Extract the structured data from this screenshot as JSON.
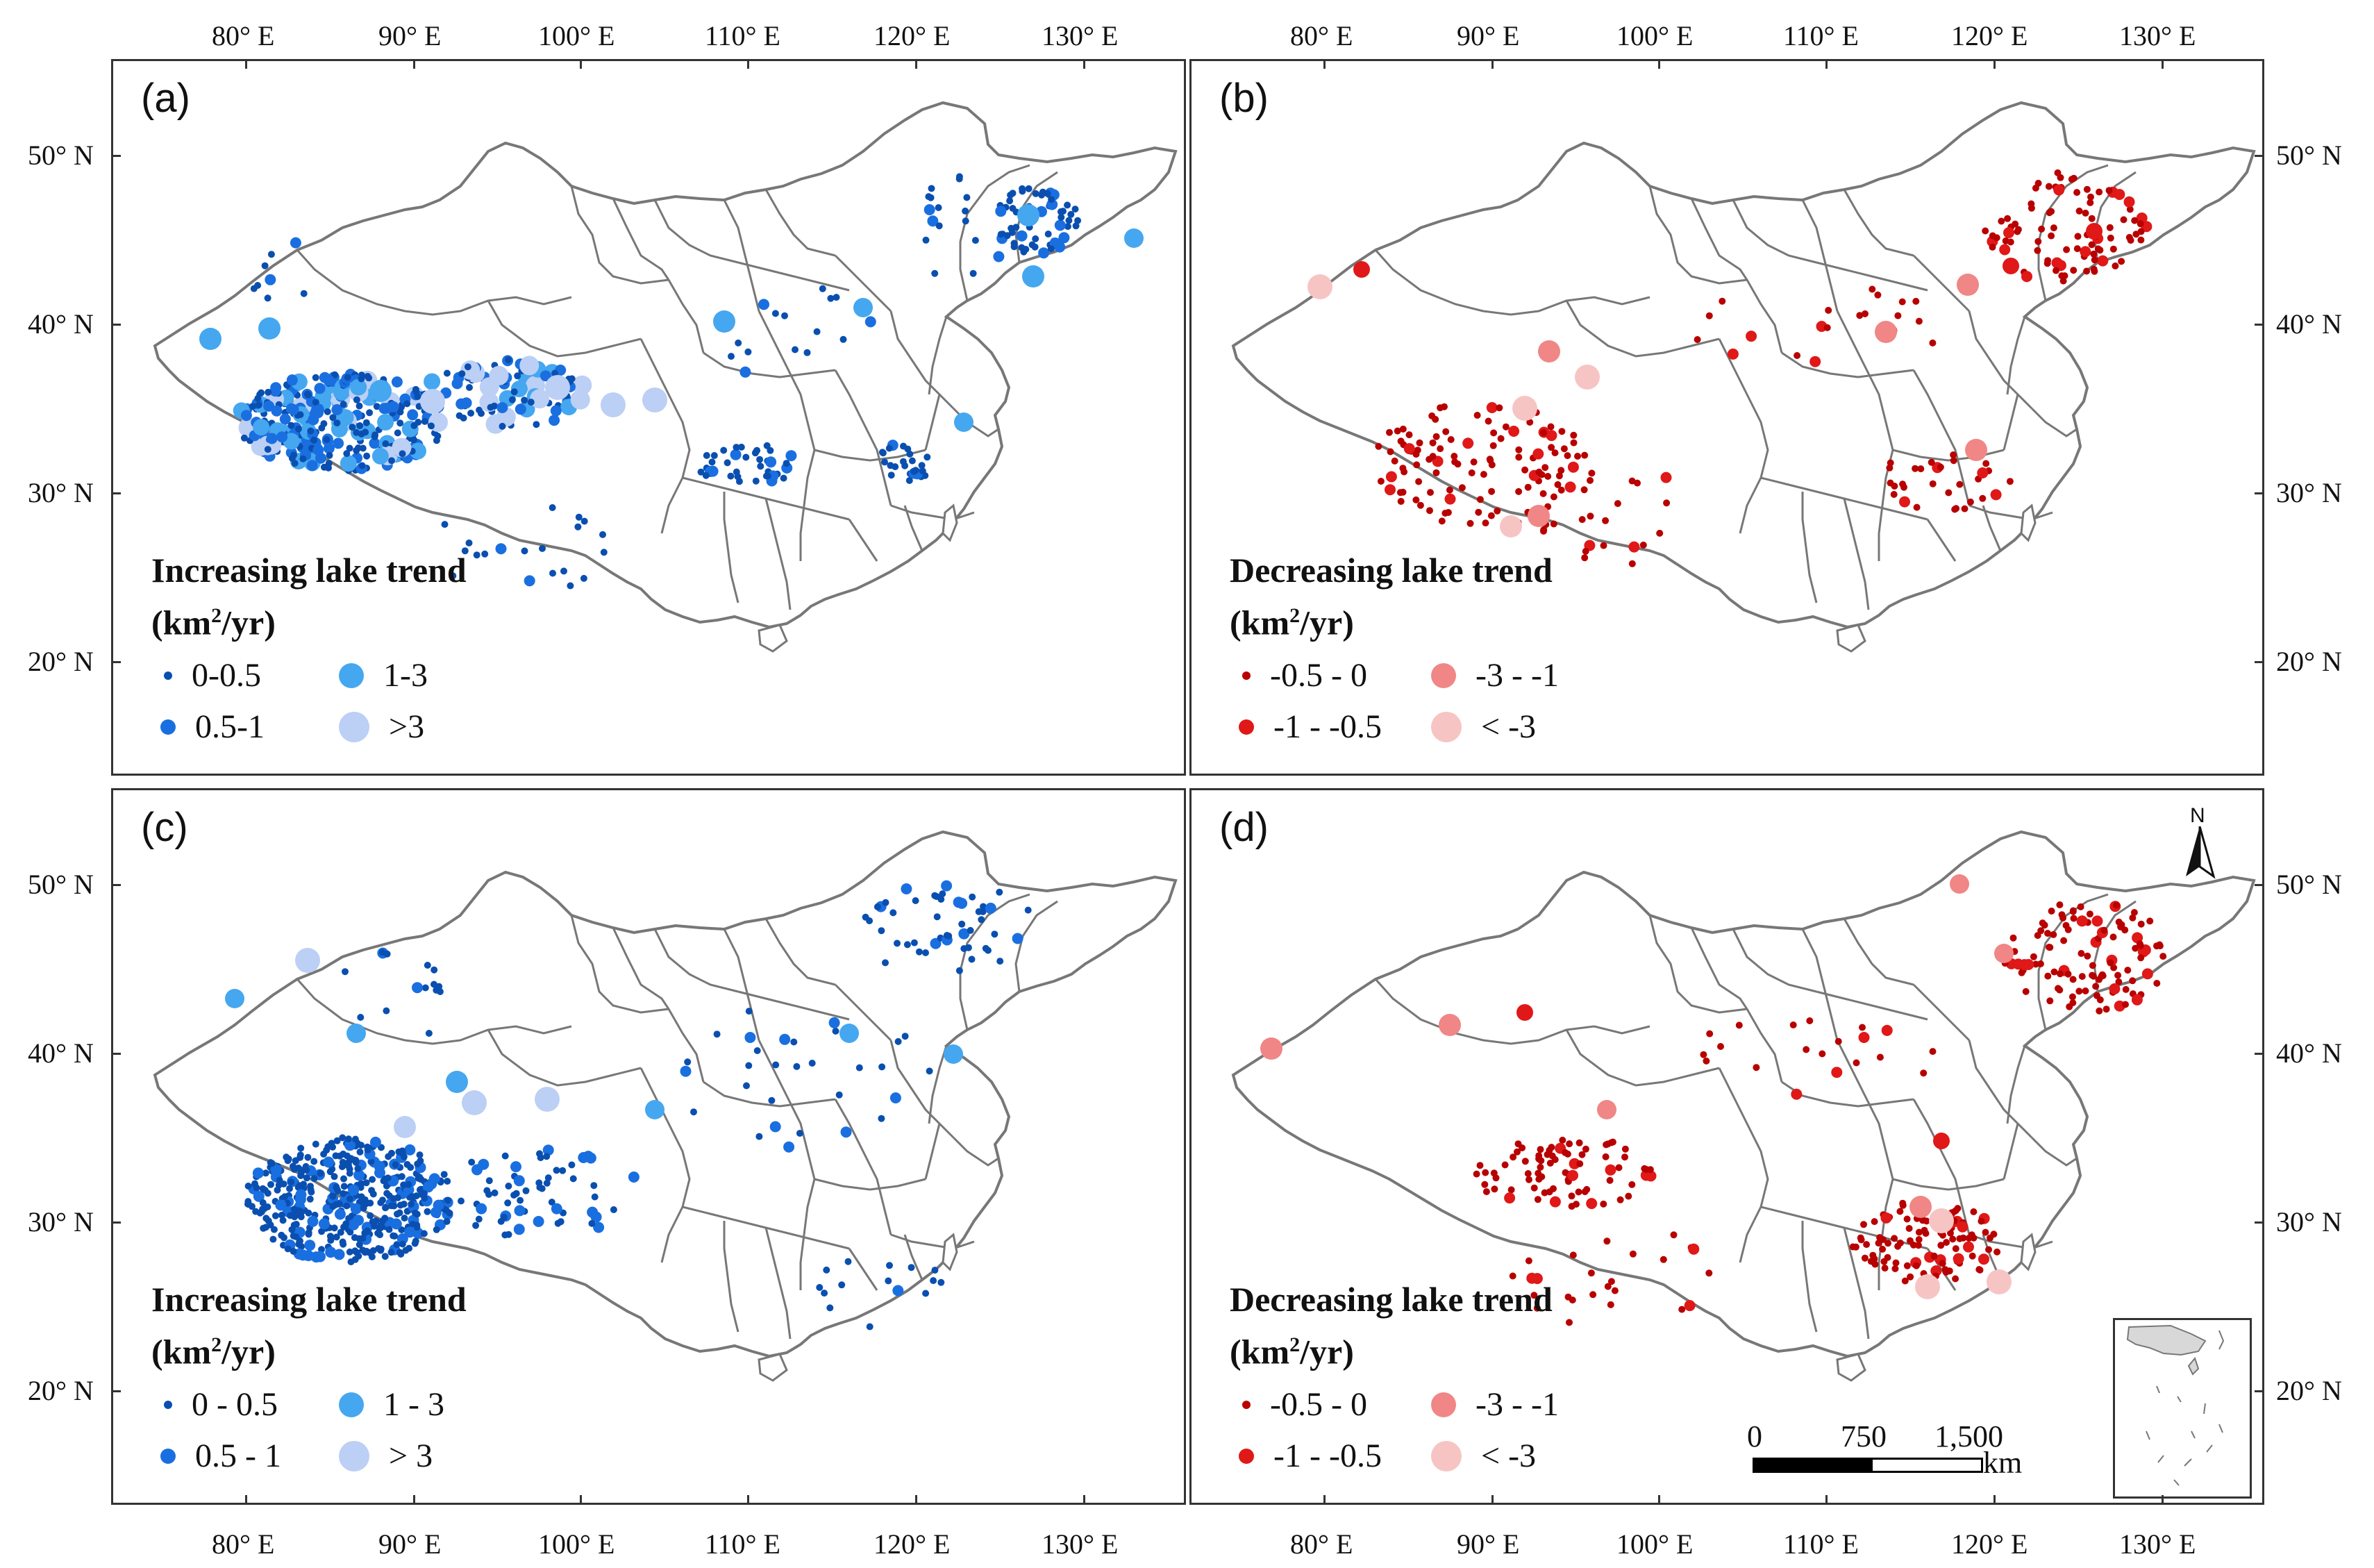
{
  "panels": [
    {
      "id": "a",
      "label": "(a)",
      "legend_title": "Increasing lake trend",
      "legend_unit": "(km",
      "legend_unit_sup": "2",
      "legend_unit_tail": "/yr)",
      "classes": [
        "0-0.5",
        "1-3",
        "0.5-1",
        ">3"
      ]
    },
    {
      "id": "b",
      "label": "(b)",
      "legend_title": "Decreasing lake trend",
      "legend_unit": "(km",
      "legend_unit_sup": "2",
      "legend_unit_tail": "/yr)",
      "classes": [
        "-0.5 - 0",
        "-3 - -1",
        "-1 - -0.5",
        "< -3"
      ]
    },
    {
      "id": "c",
      "label": "(c)",
      "legend_title": "Increasing lake trend",
      "legend_unit": "(km",
      "legend_unit_sup": "2",
      "legend_unit_tail": "/yr)",
      "classes": [
        "0 - 0.5",
        "1 - 3",
        "0.5 - 1",
        "> 3"
      ]
    },
    {
      "id": "d",
      "label": "(d)",
      "legend_title": "Decreasing lake trend",
      "legend_unit": "(km",
      "legend_unit_sup": "2",
      "legend_unit_tail": "/yr)",
      "classes": [
        "-0.5 - 0",
        "-3 - -1",
        "-1 - -0.5",
        "< -3"
      ]
    }
  ],
  "longitude_labels": [
    "80° E",
    "90° E",
    "100° E",
    "110° E",
    "120° E",
    "130° E"
  ],
  "latitude_labels": [
    "50° N",
    "40° N",
    "30° N",
    "20° N"
  ],
  "scale_bar": {
    "ticks": [
      "0",
      "750",
      "1,500"
    ],
    "unit": "km"
  },
  "north_arrow": "N",
  "colors": {
    "blue_small": "#0a4fb0",
    "blue_medium": "#1a6fe0",
    "blue_large": "#45a7ef",
    "blue_xlarge": "#bccff5",
    "red_small": "#b80000",
    "red_medium": "#e01818",
    "red_large": "#f08686",
    "red_xlarge": "#f7c4c4",
    "border": "#777777"
  }
}
